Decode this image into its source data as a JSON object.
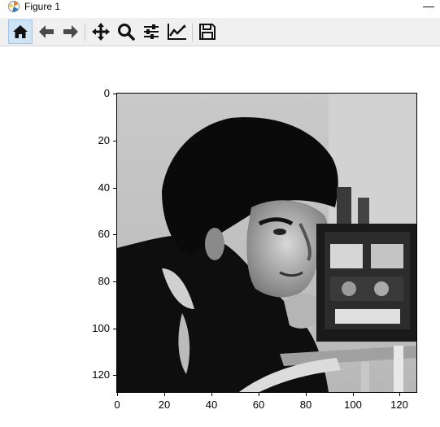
{
  "window": {
    "title": "Figure 1",
    "minimize_glyph": "—"
  },
  "toolbar": {
    "buttons": [
      {
        "icon": "home-icon",
        "tooltip": "Home"
      },
      {
        "icon": "back-arrow-icon",
        "tooltip": "Back"
      },
      {
        "icon": "forward-arrow-icon",
        "tooltip": "Forward"
      },
      {
        "icon": "pan-move-icon",
        "tooltip": "Pan"
      },
      {
        "icon": "zoom-magnifier-icon",
        "tooltip": "Zoom"
      },
      {
        "icon": "subplots-sliders-icon",
        "tooltip": "Configure subplots"
      },
      {
        "icon": "edit-curve-icon",
        "tooltip": "Edit axis"
      },
      {
        "icon": "save-disk-icon",
        "tooltip": "Save"
      }
    ]
  },
  "chart_data": {
    "type": "image",
    "description_colormap": "gray",
    "xlim": [
      0,
      127
    ],
    "ylim": [
      127,
      0
    ],
    "x_ticks": [
      "0",
      "20",
      "40",
      "60",
      "80",
      "100",
      "120"
    ],
    "y_ticks": [
      "0",
      "20",
      "40",
      "60",
      "80",
      "100",
      "120"
    ],
    "title": "",
    "xlabel": "",
    "ylabel": ""
  },
  "colors": {
    "toolbar_bg": "#f0f0f0",
    "active_button": "#cde4f7",
    "icon_color": "#1a1a1a"
  }
}
